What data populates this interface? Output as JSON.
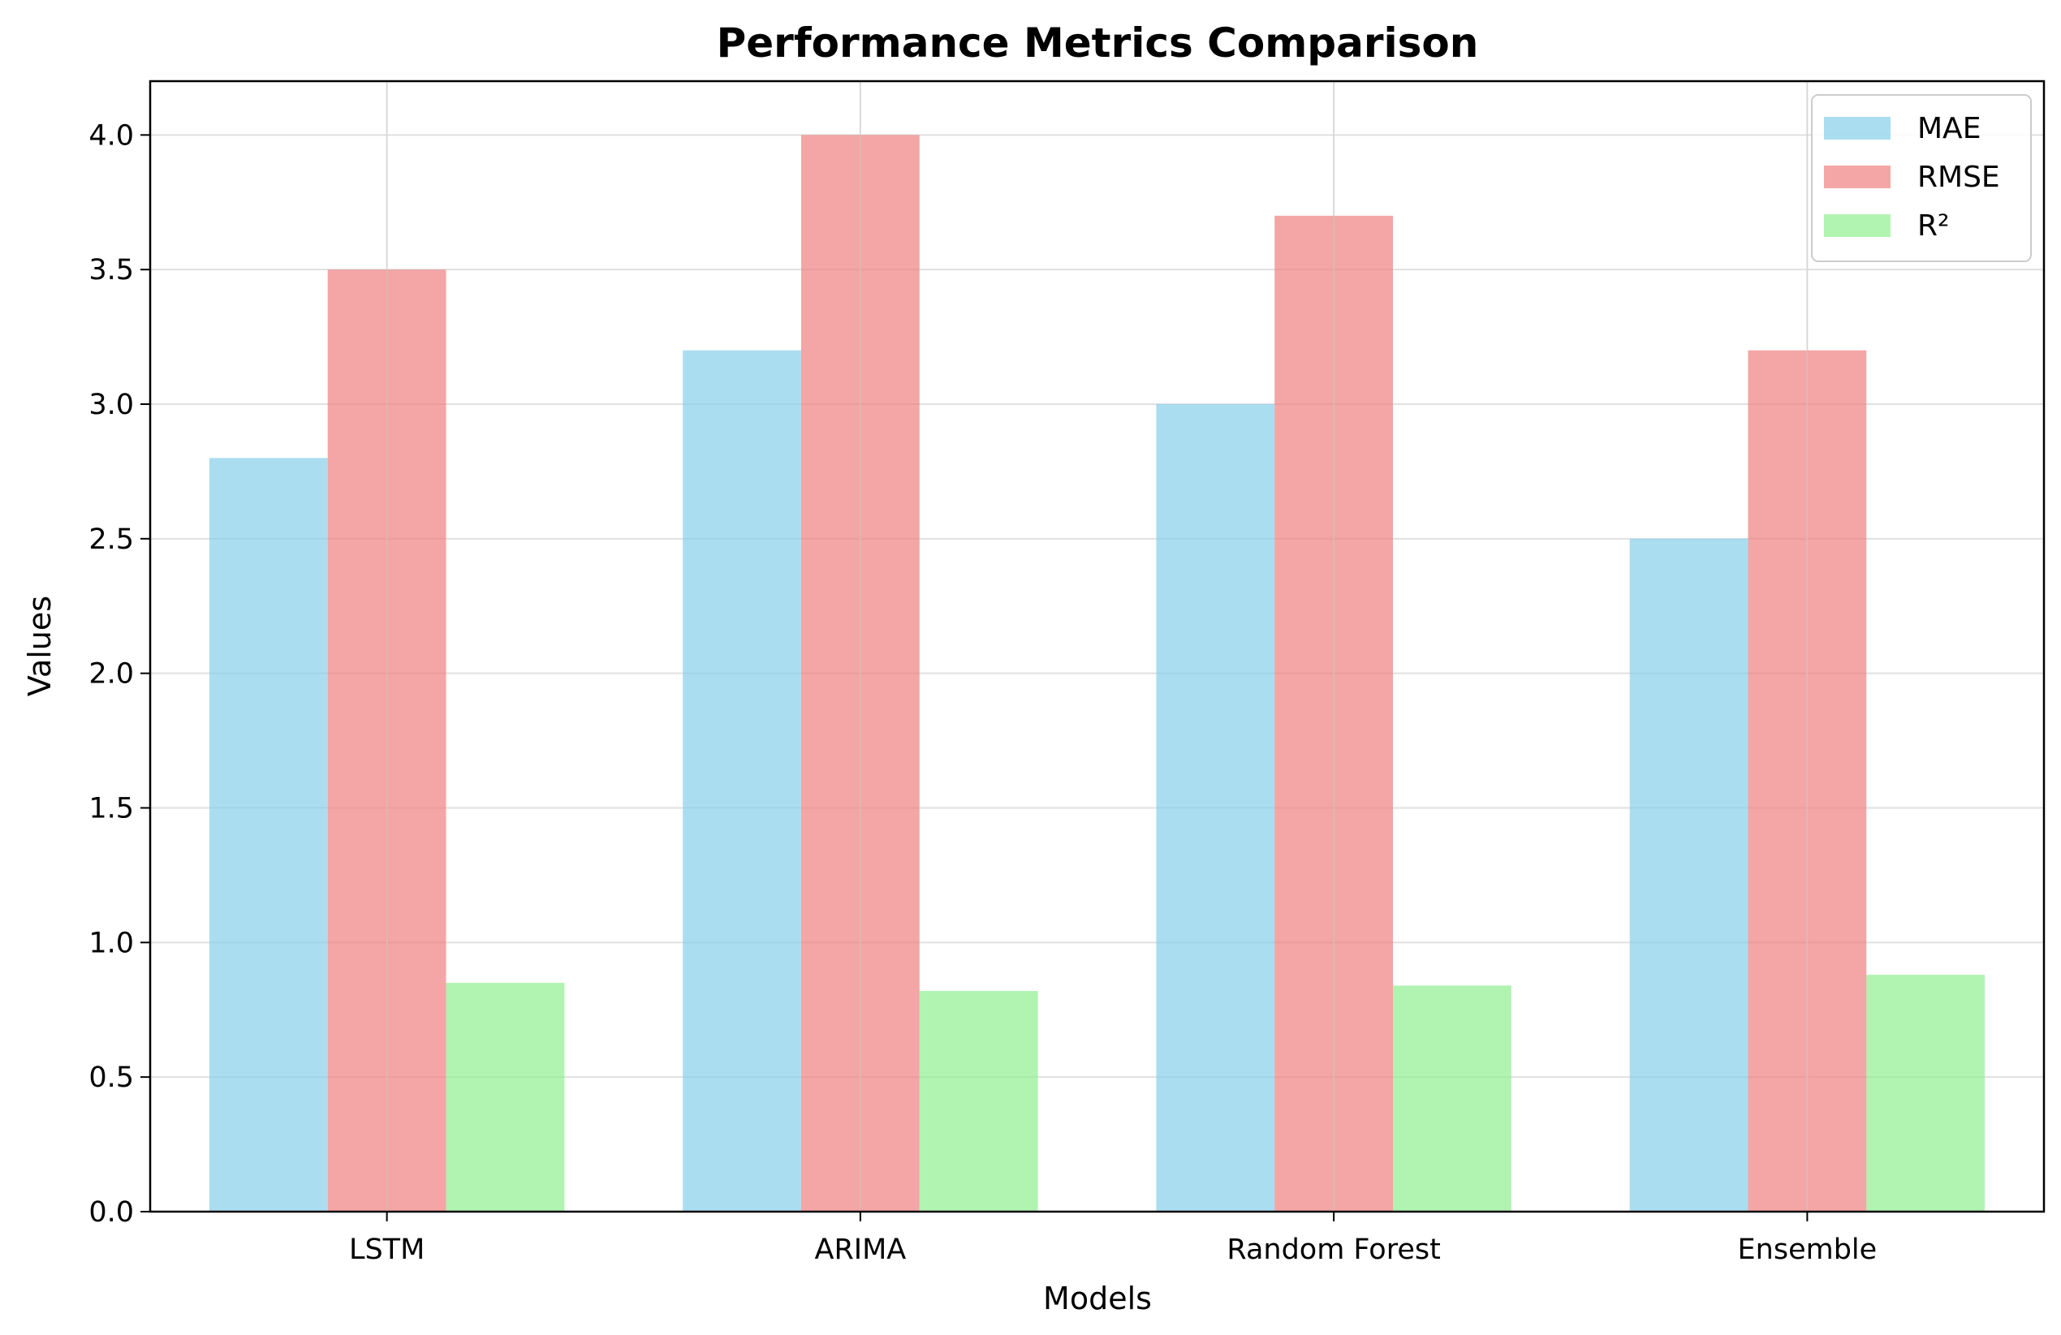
{
  "chart_data": {
    "type": "bar",
    "title": "Performance Metrics Comparison",
    "xlabel": "Models",
    "ylabel": "Values",
    "categories": [
      "LSTM",
      "ARIMA",
      "Random Forest",
      "Ensemble"
    ],
    "series": [
      {
        "name": "MAE",
        "values": [
          2.8,
          3.2,
          3.0,
          2.5
        ],
        "color": "#87ceeb"
      },
      {
        "name": "RMSE",
        "values": [
          3.5,
          4.0,
          3.7,
          3.2
        ],
        "color": "#f08080"
      },
      {
        "name": "R²",
        "values": [
          0.85,
          0.82,
          0.84,
          0.88
        ],
        "color": "#90ee90"
      }
    ],
    "ylim": [
      0,
      4.2
    ],
    "yticks": [
      "0.0",
      "0.5",
      "1.0",
      "1.5",
      "2.0",
      "2.5",
      "3.0",
      "3.5",
      "4.0"
    ],
    "grid": true,
    "legend_position": "top-right"
  }
}
